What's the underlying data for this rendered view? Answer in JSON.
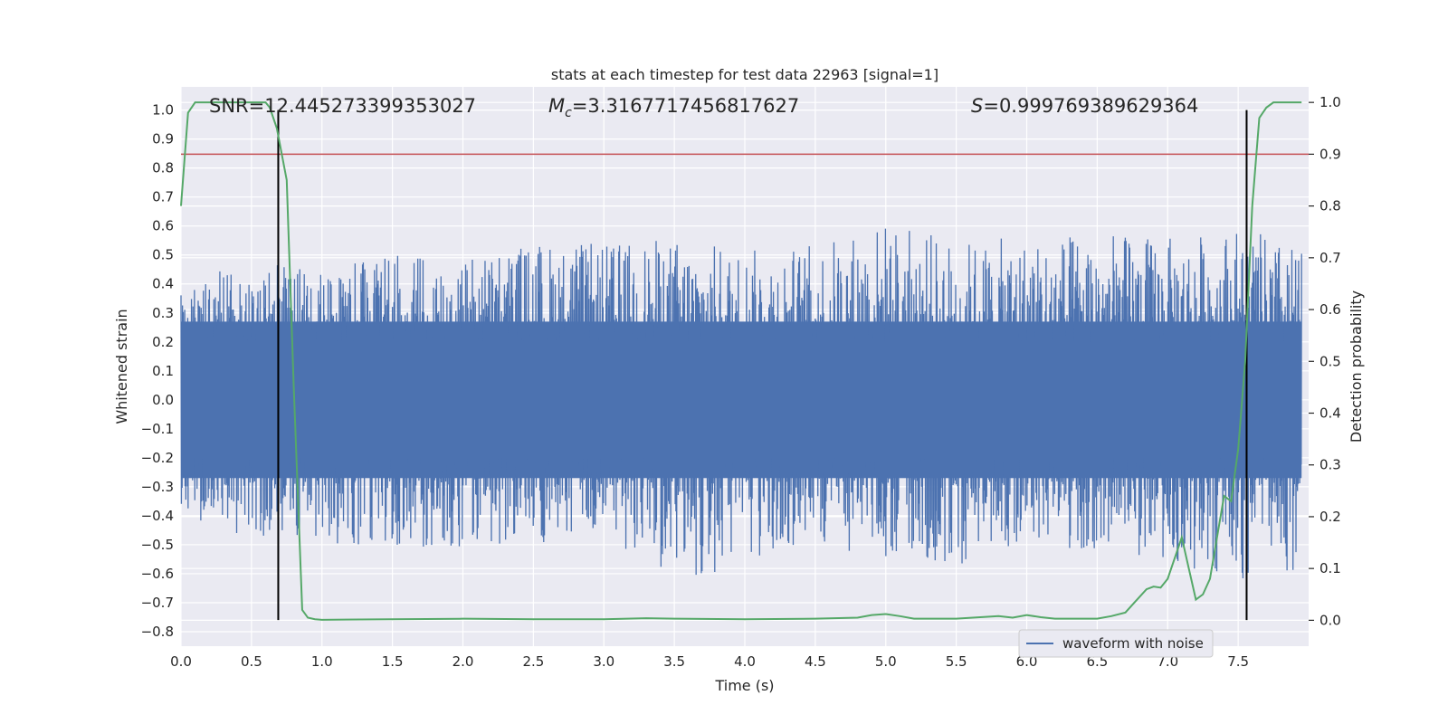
{
  "chart_data": {
    "type": "line",
    "title": "stats at each timestep for test data 22963 [signal=1]",
    "xlabel": "Time (s)",
    "ylabel": "Whitened strain",
    "y2label": "Detection probability",
    "xlim": [
      0.0,
      8.0
    ],
    "ylim": [
      -0.85,
      1.08
    ],
    "y2lim": [
      -0.05,
      1.03
    ],
    "xticks": [
      "0.0",
      "0.5",
      "1.0",
      "1.5",
      "2.0",
      "2.5",
      "3.0",
      "3.5",
      "4.0",
      "4.5",
      "5.0",
      "5.5",
      "6.0",
      "6.5",
      "7.0",
      "7.5"
    ],
    "yticks": [
      "1.0",
      "0.9",
      "0.8",
      "0.7",
      "0.6",
      "0.5",
      "0.4",
      "0.3",
      "0.2",
      "0.1",
      "0.0",
      "−0.1",
      "−0.2",
      "−0.3",
      "−0.4",
      "−0.5",
      "−0.6",
      "−0.7",
      "−0.8"
    ],
    "y2ticks": [
      "1.0",
      "0.9",
      "0.8",
      "0.7",
      "0.6",
      "0.5",
      "0.4",
      "0.3",
      "0.2",
      "0.1",
      "0.0"
    ],
    "grid": true,
    "legend": {
      "position": "bottom-right",
      "entries": [
        "waveform with noise"
      ]
    },
    "annotations": {
      "snr": "SNR=12.445273399353027",
      "mc_symbol": "M",
      "mc_sub": "c",
      "mc_value": "=3.3167717456817627",
      "s_symbol": "S",
      "s_value": "=0.999769389629364"
    },
    "threshold": {
      "y2": 0.9,
      "color": "#c44e52"
    },
    "vlines": {
      "x": [
        0.69,
        7.56
      ],
      "y_range": [
        -0.76,
        1.0
      ],
      "color": "#000000"
    },
    "series": [
      {
        "name": "waveform with noise",
        "axis": "left",
        "color": "#4c72b0",
        "envelope": {
          "x": [
            0.0,
            0.5,
            1.0,
            1.5,
            2.0,
            2.5,
            3.0,
            3.5,
            4.0,
            4.5,
            5.0,
            5.5,
            6.0,
            6.5,
            7.0,
            7.5,
            7.95
          ],
          "upper": [
            0.42,
            0.48,
            0.45,
            0.52,
            0.5,
            0.55,
            0.54,
            0.56,
            0.52,
            0.54,
            0.62,
            0.55,
            0.56,
            0.58,
            0.56,
            0.6,
            0.52
          ],
          "lower": [
            -0.4,
            -0.48,
            -0.5,
            -0.5,
            -0.52,
            -0.5,
            -0.48,
            -0.62,
            -0.6,
            -0.5,
            -0.55,
            -0.58,
            -0.5,
            -0.52,
            -0.56,
            -0.62,
            -0.6
          ]
        }
      },
      {
        "name": "",
        "axis": "right",
        "color": "#55a868",
        "x": [
          0.0,
          0.05,
          0.1,
          0.2,
          0.3,
          0.4,
          0.5,
          0.55,
          0.6,
          0.63,
          0.68,
          0.75,
          0.8,
          0.86,
          0.9,
          0.95,
          1.0,
          1.5,
          2.0,
          2.5,
          3.0,
          3.3,
          3.5,
          4.0,
          4.5,
          4.8,
          4.9,
          5.0,
          5.1,
          5.2,
          5.5,
          5.8,
          5.9,
          6.0,
          6.1,
          6.2,
          6.5,
          6.6,
          6.7,
          6.75,
          6.85,
          6.9,
          6.95,
          7.0,
          7.05,
          7.1,
          7.15,
          7.2,
          7.25,
          7.3,
          7.35,
          7.4,
          7.45,
          7.5,
          7.55,
          7.6,
          7.65,
          7.7,
          7.75,
          7.8,
          7.95
        ],
        "y": [
          0.8,
          0.98,
          1.0,
          1.0,
          1.0,
          1.0,
          1.0,
          1.0,
          1.0,
          0.99,
          0.95,
          0.85,
          0.45,
          0.02,
          0.005,
          0.002,
          0.001,
          0.002,
          0.003,
          0.002,
          0.002,
          0.004,
          0.003,
          0.002,
          0.003,
          0.005,
          0.01,
          0.012,
          0.008,
          0.003,
          0.003,
          0.008,
          0.005,
          0.01,
          0.006,
          0.003,
          0.003,
          0.008,
          0.015,
          0.03,
          0.06,
          0.065,
          0.063,
          0.08,
          0.12,
          0.16,
          0.1,
          0.04,
          0.05,
          0.08,
          0.16,
          0.24,
          0.23,
          0.33,
          0.5,
          0.8,
          0.97,
          0.99,
          1.0,
          1.0,
          1.0
        ]
      }
    ]
  }
}
